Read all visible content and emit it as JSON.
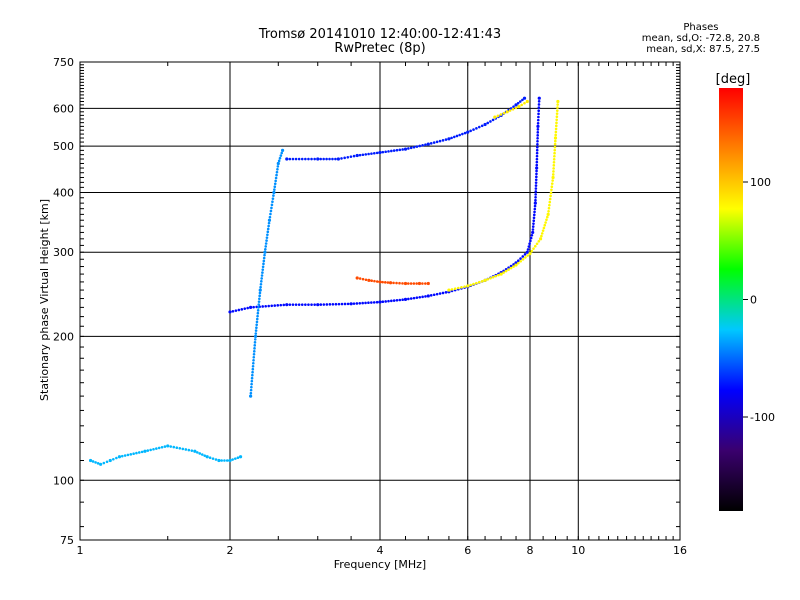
{
  "header": {
    "title_line1": "Tromsø 20141010 12:40:00-12:41:43",
    "title_line2": "RwPretec (8p)"
  },
  "phases": {
    "title": "Phases",
    "line_o": "mean, sd,O: -72.8, 20.8",
    "line_x": "mean, sd,X: 87.5, 27.5"
  },
  "colors": {
    "colormap_stops": [
      "#000000",
      "#3a006e",
      "#0000ff",
      "#00c8ff",
      "#00ff00",
      "#ffff00",
      "#ff8000",
      "#ff0000"
    ],
    "grid": "#000000"
  },
  "chart_data": {
    "type": "scatter",
    "title": "Tromsø 20141010 12:40:00-12:41:43",
    "subtitle": "RwPretec (8p)",
    "xlabel": "Frequency [MHz]",
    "ylabel": "Stationary phase Virtual Height [km]",
    "x_scale": "log",
    "y_scale": "log",
    "xlim": [
      1,
      16
    ],
    "ylim": [
      75,
      750
    ],
    "x_ticks": [
      1,
      2,
      4,
      6,
      8,
      10,
      16
    ],
    "y_ticks": [
      75,
      100,
      200,
      300,
      400,
      500,
      600,
      750
    ],
    "x_gridlines": [
      2,
      4,
      6,
      8,
      10
    ],
    "y_gridlines": [
      100,
      200,
      300,
      400,
      500,
      600
    ],
    "grid": true,
    "colorbar": {
      "label": "[deg]",
      "range": [
        -180,
        180
      ],
      "ticks": [
        100,
        0,
        -100
      ]
    },
    "traces": [
      {
        "id": "o-low-trace",
        "color_phase": -75,
        "points": [
          [
            2.0,
            225
          ],
          [
            2.2,
            230
          ],
          [
            2.6,
            233
          ],
          [
            3.0,
            233
          ],
          [
            3.5,
            234
          ],
          [
            4.0,
            236
          ],
          [
            4.5,
            239
          ],
          [
            5.0,
            243
          ],
          [
            5.5,
            248
          ],
          [
            6.0,
            254
          ],
          [
            6.5,
            262
          ],
          [
            7.0,
            272
          ],
          [
            7.5,
            285
          ],
          [
            7.9,
            300
          ],
          [
            8.1,
            330
          ],
          [
            8.2,
            380
          ],
          [
            8.25,
            450
          ],
          [
            8.3,
            550
          ],
          [
            8.35,
            630
          ]
        ]
      },
      {
        "id": "o-high-trace",
        "color_phase": -70,
        "points": [
          [
            2.6,
            470
          ],
          [
            3.0,
            470
          ],
          [
            3.3,
            470
          ],
          [
            3.6,
            478
          ],
          [
            4.0,
            485
          ],
          [
            4.5,
            493
          ],
          [
            5.0,
            505
          ],
          [
            5.5,
            518
          ],
          [
            6.0,
            535
          ],
          [
            6.5,
            555
          ],
          [
            7.0,
            580
          ],
          [
            7.5,
            610
          ],
          [
            7.8,
            630
          ]
        ]
      },
      {
        "id": "x-low-trace",
        "color_phase": 80,
        "points": [
          [
            5.5,
            250
          ],
          [
            6.0,
            255
          ],
          [
            6.5,
            262
          ],
          [
            7.0,
            270
          ],
          [
            7.5,
            282
          ],
          [
            8.0,
            298
          ],
          [
            8.4,
            320
          ],
          [
            8.7,
            360
          ],
          [
            8.9,
            430
          ],
          [
            9.0,
            520
          ],
          [
            9.1,
            620
          ]
        ]
      },
      {
        "id": "x-high-trace",
        "color_phase": 85,
        "points": [
          [
            6.8,
            575
          ],
          [
            7.2,
            590
          ],
          [
            7.6,
            605
          ],
          [
            7.9,
            620
          ]
        ]
      },
      {
        "id": "orange-trace",
        "color_phase": 150,
        "points": [
          [
            3.6,
            265
          ],
          [
            3.8,
            262
          ],
          [
            4.0,
            260
          ],
          [
            4.2,
            259
          ],
          [
            4.5,
            258
          ],
          [
            4.8,
            258
          ],
          [
            5.0,
            258
          ]
        ]
      },
      {
        "id": "e-layer-trace",
        "color_phase": -30,
        "points": [
          [
            1.05,
            110
          ],
          [
            1.1,
            108
          ],
          [
            1.15,
            110
          ],
          [
            1.2,
            112
          ],
          [
            1.35,
            115
          ],
          [
            1.5,
            118
          ],
          [
            1.7,
            115
          ],
          [
            1.8,
            112
          ],
          [
            1.9,
            110
          ],
          [
            2.0,
            110
          ],
          [
            2.1,
            112
          ]
        ]
      },
      {
        "id": "f-spread-column",
        "color_phase": -40,
        "points": [
          [
            2.2,
            150
          ],
          [
            2.25,
            200
          ],
          [
            2.3,
            250
          ],
          [
            2.35,
            300
          ],
          [
            2.4,
            350
          ],
          [
            2.45,
            400
          ],
          [
            2.5,
            460
          ],
          [
            2.55,
            490
          ]
        ]
      }
    ]
  },
  "colorbar_labels": [
    "[deg]",
    "100",
    "0",
    "-100"
  ]
}
